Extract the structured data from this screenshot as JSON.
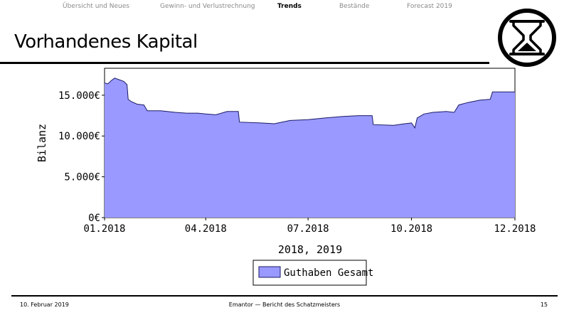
{
  "nav": {
    "items": [
      {
        "label": "Übersicht und Neues",
        "active": false
      },
      {
        "label": "Gewinn- und Verlustrechnung",
        "active": false
      },
      {
        "label": "Trends",
        "active": true
      },
      {
        "label": "Bestände",
        "active": false
      },
      {
        "label": "Forecast 2019",
        "active": false
      }
    ]
  },
  "slide": {
    "title": "Vorhandenes Kapital"
  },
  "logo": {
    "icon": "hourglass-icon"
  },
  "footer": {
    "date": "10. Februar 2019",
    "center": "Emantor — Bericht des Schatzmeisters",
    "page": "15"
  },
  "colors": {
    "fill": "#9999ff",
    "line": "#1a1a66"
  },
  "chart_data": {
    "type": "area",
    "title": "",
    "xlabel": "2018, 2019",
    "ylabel": "Bilanz",
    "x_tick_labels": [
      "01.2018",
      "04.2018",
      "07.2018",
      "10.2018",
      "12.2018"
    ],
    "y_tick_labels": [
      "0€",
      "5.000€",
      "10.000€",
      "15.000€"
    ],
    "y_ticks": [
      0,
      5000,
      10000,
      15000
    ],
    "ylim": [
      0,
      18300
    ],
    "xlim": [
      "2018-01-01",
      "2019-01-01"
    ],
    "legend_position": "bottom-center",
    "grid": false,
    "series": [
      {
        "name": "Guthaben Gesamt",
        "points": [
          [
            "2018-01-01",
            16500
          ],
          [
            "2018-01-04",
            16400
          ],
          [
            "2018-01-07",
            16800
          ],
          [
            "2018-01-10",
            17100
          ],
          [
            "2018-01-14",
            16900
          ],
          [
            "2018-01-18",
            16700
          ],
          [
            "2018-01-21",
            16300
          ],
          [
            "2018-01-22",
            14500
          ],
          [
            "2018-01-25",
            14200
          ],
          [
            "2018-01-30",
            13900
          ],
          [
            "2018-02-05",
            13800
          ],
          [
            "2018-02-08",
            13100
          ],
          [
            "2018-02-20",
            13100
          ],
          [
            "2018-03-05",
            12900
          ],
          [
            "2018-03-15",
            12800
          ],
          [
            "2018-03-25",
            12800
          ],
          [
            "2018-04-01",
            12700
          ],
          [
            "2018-04-10",
            12600
          ],
          [
            "2018-04-20",
            13000
          ],
          [
            "2018-04-30",
            13000
          ],
          [
            "2018-05-01",
            11700
          ],
          [
            "2018-05-20",
            11600
          ],
          [
            "2018-06-01",
            11500
          ],
          [
            "2018-06-15",
            11900
          ],
          [
            "2018-07-01",
            12000
          ],
          [
            "2018-07-15",
            12200
          ],
          [
            "2018-08-01",
            12400
          ],
          [
            "2018-08-15",
            12500
          ],
          [
            "2018-08-27",
            12500
          ],
          [
            "2018-08-28",
            11400
          ],
          [
            "2018-09-15",
            11300
          ],
          [
            "2018-09-25",
            11500
          ],
          [
            "2018-10-01",
            11600
          ],
          [
            "2018-10-04",
            11000
          ],
          [
            "2018-10-06",
            12200
          ],
          [
            "2018-10-12",
            12700
          ],
          [
            "2018-10-20",
            12900
          ],
          [
            "2018-11-01",
            13000
          ],
          [
            "2018-11-08",
            12900
          ],
          [
            "2018-11-12",
            13800
          ],
          [
            "2018-11-20",
            14100
          ],
          [
            "2018-12-01",
            14400
          ],
          [
            "2018-12-10",
            14500
          ],
          [
            "2018-12-12",
            15400
          ],
          [
            "2019-01-01",
            15400
          ]
        ]
      }
    ]
  }
}
